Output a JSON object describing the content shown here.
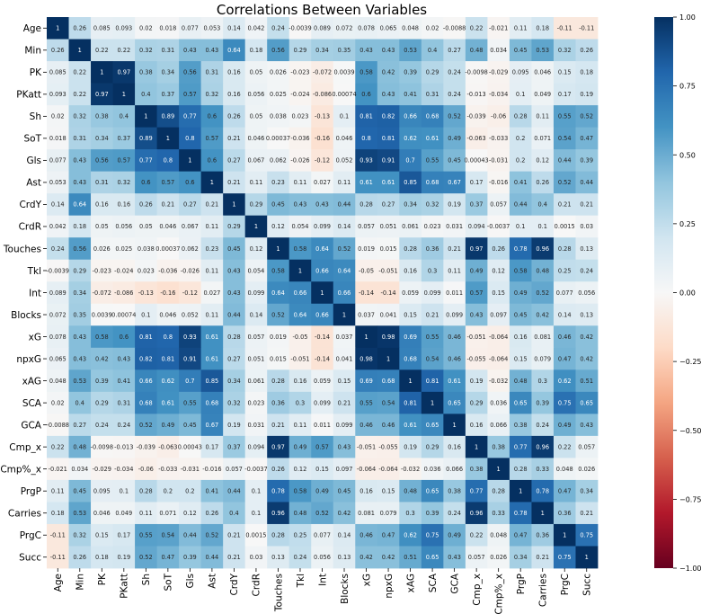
{
  "chart_data": {
    "type": "heatmap",
    "title": "Correlations Between Variables",
    "labels": [
      "Age",
      "Min",
      "PK",
      "PKatt",
      "Sh",
      "SoT",
      "Gls",
      "Ast",
      "CrdY",
      "CrdR",
      "Touches",
      "Tkl",
      "Int",
      "Blocks",
      "xG",
      "npxG",
      "xAG",
      "SCA",
      "GCA",
      "Cmp_x",
      "Cmp%_x",
      "PrgP",
      "Carries",
      "PrgC",
      "Succ"
    ],
    "values": [
      [
        1,
        0.26,
        0.085,
        0.093,
        0.02,
        0.018,
        0.077,
        0.053,
        0.14,
        0.042,
        0.24,
        -0.0039,
        0.089,
        0.072,
        0.078,
        0.065,
        0.048,
        0.02,
        -0.0088,
        0.22,
        -0.021,
        0.11,
        0.18,
        -0.11,
        -0.11
      ],
      [
        0.26,
        1,
        0.22,
        0.22,
        0.32,
        0.31,
        0.43,
        0.43,
        0.64,
        0.18,
        0.56,
        0.29,
        0.34,
        0.35,
        0.43,
        0.43,
        0.53,
        0.4,
        0.27,
        0.48,
        0.034,
        0.45,
        0.53,
        0.32,
        0.26
      ],
      [
        0.085,
        0.22,
        1,
        0.97,
        0.38,
        0.34,
        0.56,
        0.31,
        0.16,
        0.05,
        0.026,
        -0.023,
        -0.072,
        0.0039,
        0.58,
        0.42,
        0.39,
        0.29,
        0.24,
        -0.0098,
        -0.029,
        0.095,
        0.046,
        0.15,
        0.18
      ],
      [
        0.093,
        0.22,
        0.97,
        1,
        0.4,
        0.37,
        0.57,
        0.32,
        0.16,
        0.056,
        0.025,
        -0.024,
        -0.086,
        0.00074,
        0.6,
        0.43,
        0.41,
        0.31,
        0.24,
        -0.013,
        -0.034,
        0.1,
        0.049,
        0.17,
        0.19
      ],
      [
        0.02,
        0.32,
        0.38,
        0.4,
        1,
        0.89,
        0.77,
        0.6,
        0.26,
        0.05,
        0.038,
        0.023,
        -0.13,
        0.1,
        0.81,
        0.82,
        0.66,
        0.68,
        0.52,
        -0.039,
        -0.06,
        0.28,
        0.11,
        0.55,
        0.52
      ],
      [
        0.018,
        0.31,
        0.34,
        0.37,
        0.89,
        1,
        0.8,
        0.57,
        0.21,
        0.046,
        0.00037,
        -0.036,
        -0.16,
        0.046,
        0.8,
        0.81,
        0.62,
        0.61,
        0.49,
        -0.063,
        -0.033,
        0.2,
        0.071,
        0.54,
        0.47
      ],
      [
        0.077,
        0.43,
        0.56,
        0.57,
        0.77,
        0.8,
        1,
        0.6,
        0.27,
        0.067,
        0.062,
        -0.026,
        -0.12,
        0.052,
        0.93,
        0.91,
        0.7,
        0.55,
        0.45,
        0.00043,
        -0.031,
        0.2,
        0.12,
        0.44,
        0.39
      ],
      [
        0.053,
        0.43,
        0.31,
        0.32,
        0.6,
        0.57,
        0.6,
        1,
        0.21,
        0.11,
        0.23,
        0.11,
        0.027,
        0.11,
        0.61,
        0.61,
        0.85,
        0.68,
        0.67,
        0.17,
        -0.016,
        0.41,
        0.26,
        0.52,
        0.44
      ],
      [
        0.14,
        0.64,
        0.16,
        0.16,
        0.26,
        0.21,
        0.27,
        0.21,
        1,
        0.29,
        0.45,
        0.43,
        0.43,
        0.44,
        0.28,
        0.27,
        0.34,
        0.32,
        0.19,
        0.37,
        0.057,
        0.44,
        0.4,
        0.21,
        0.21
      ],
      [
        0.042,
        0.18,
        0.05,
        0.056,
        0.05,
        0.046,
        0.067,
        0.11,
        0.29,
        1,
        0.12,
        0.054,
        0.099,
        0.14,
        0.057,
        0.051,
        0.061,
        0.023,
        0.031,
        0.094,
        -0.0037,
        0.1,
        0.1,
        0.0015,
        0.03
      ],
      [
        0.24,
        0.56,
        0.026,
        0.025,
        0.038,
        0.00037,
        0.062,
        0.23,
        0.45,
        0.12,
        1,
        0.58,
        0.64,
        0.52,
        0.019,
        0.015,
        0.28,
        0.36,
        0.21,
        0.97,
        0.26,
        0.78,
        0.96,
        0.28,
        0.13
      ],
      [
        -0.0039,
        0.29,
        -0.023,
        -0.024,
        0.023,
        -0.036,
        -0.026,
        0.11,
        0.43,
        0.054,
        0.58,
        1,
        0.66,
        0.64,
        -0.05,
        -0.051,
        0.16,
        0.3,
        0.11,
        0.49,
        0.12,
        0.58,
        0.48,
        0.25,
        0.24
      ],
      [
        0.089,
        0.34,
        -0.072,
        -0.086,
        -0.13,
        -0.16,
        -0.12,
        0.027,
        0.43,
        0.099,
        0.64,
        0.66,
        1,
        0.66,
        -0.14,
        -0.14,
        0.059,
        0.099,
        0.011,
        0.57,
        0.15,
        0.49,
        0.52,
        0.077,
        0.056
      ],
      [
        0.072,
        0.35,
        0.0039,
        0.00074,
        0.1,
        0.046,
        0.052,
        0.11,
        0.44,
        0.14,
        0.52,
        0.64,
        0.66,
        1,
        0.037,
        0.041,
        0.15,
        0.21,
        0.099,
        0.43,
        0.097,
        0.45,
        0.42,
        0.14,
        0.13
      ],
      [
        0.078,
        0.43,
        0.58,
        0.6,
        0.81,
        0.8,
        0.93,
        0.61,
        0.28,
        0.057,
        0.019,
        -0.05,
        -0.14,
        0.037,
        1,
        0.98,
        0.69,
        0.55,
        0.46,
        -0.051,
        -0.064,
        0.16,
        0.081,
        0.46,
        0.42
      ],
      [
        0.065,
        0.43,
        0.42,
        0.43,
        0.82,
        0.81,
        0.91,
        0.61,
        0.27,
        0.051,
        0.015,
        -0.051,
        -0.14,
        0.041,
        0.98,
        1,
        0.68,
        0.54,
        0.46,
        -0.055,
        -0.064,
        0.15,
        0.079,
        0.47,
        0.42
      ],
      [
        0.048,
        0.53,
        0.39,
        0.41,
        0.66,
        0.62,
        0.7,
        0.85,
        0.34,
        0.061,
        0.28,
        0.16,
        0.059,
        0.15,
        0.69,
        0.68,
        1,
        0.81,
        0.61,
        0.19,
        -0.032,
        0.48,
        0.3,
        0.62,
        0.51
      ],
      [
        0.02,
        0.4,
        0.29,
        0.31,
        0.68,
        0.61,
        0.55,
        0.68,
        0.32,
        0.023,
        0.36,
        0.3,
        0.099,
        0.21,
        0.55,
        0.54,
        0.81,
        1,
        0.65,
        0.29,
        0.036,
        0.65,
        0.39,
        0.75,
        0.65
      ],
      [
        -0.0088,
        0.27,
        0.24,
        0.24,
        0.52,
        0.49,
        0.45,
        0.67,
        0.19,
        0.031,
        0.21,
        0.11,
        0.011,
        0.099,
        0.46,
        0.46,
        0.61,
        0.65,
        1,
        0.16,
        0.066,
        0.38,
        0.24,
        0.49,
        0.43
      ],
      [
        0.22,
        0.48,
        -0.0098,
        -0.013,
        -0.039,
        -0.063,
        0.00043,
        0.17,
        0.37,
        0.094,
        0.97,
        0.49,
        0.57,
        0.43,
        -0.051,
        -0.055,
        0.19,
        0.29,
        0.16,
        1,
        0.38,
        0.77,
        0.96,
        0.22,
        0.057
      ],
      [
        -0.021,
        0.034,
        -0.029,
        -0.034,
        -0.06,
        -0.033,
        -0.031,
        -0.016,
        0.057,
        -0.0037,
        0.26,
        0.12,
        0.15,
        0.097,
        -0.064,
        -0.064,
        -0.032,
        0.036,
        0.066,
        0.38,
        1,
        0.28,
        0.33,
        0.048,
        0.026
      ],
      [
        0.11,
        0.45,
        0.095,
        0.1,
        0.28,
        0.2,
        0.2,
        0.41,
        0.44,
        0.1,
        0.78,
        0.58,
        0.49,
        0.45,
        0.16,
        0.15,
        0.48,
        0.65,
        0.38,
        0.77,
        0.28,
        1,
        0.78,
        0.47,
        0.34
      ],
      [
        0.18,
        0.53,
        0.046,
        0.049,
        0.11,
        0.071,
        0.12,
        0.26,
        0.4,
        0.1,
        0.96,
        0.48,
        0.52,
        0.42,
        0.081,
        0.079,
        0.3,
        0.39,
        0.24,
        0.96,
        0.33,
        0.78,
        1,
        0.36,
        0.21
      ],
      [
        -0.11,
        0.32,
        0.15,
        0.17,
        0.55,
        0.54,
        0.44,
        0.52,
        0.21,
        0.0015,
        0.28,
        0.25,
        0.077,
        0.14,
        0.46,
        0.47,
        0.62,
        0.75,
        0.49,
        0.22,
        0.048,
        0.47,
        0.36,
        1,
        0.75
      ],
      [
        -0.11,
        0.26,
        0.18,
        0.19,
        0.52,
        0.47,
        0.39,
        0.44,
        0.21,
        0.03,
        0.13,
        0.24,
        0.056,
        0.13,
        0.42,
        0.42,
        0.51,
        0.65,
        0.43,
        0.057,
        0.026,
        0.34,
        0.21,
        0.75,
        1
      ]
    ],
    "colormap": "RdBu",
    "vmin": -1,
    "vmax": 1,
    "colorbar_ticks": [
      "1.00",
      "0.75",
      "0.50",
      "0.25",
      "0.00",
      "−0.25",
      "−0.50",
      "−0.75",
      "−1.00"
    ],
    "annotations": true,
    "grid": false
  }
}
